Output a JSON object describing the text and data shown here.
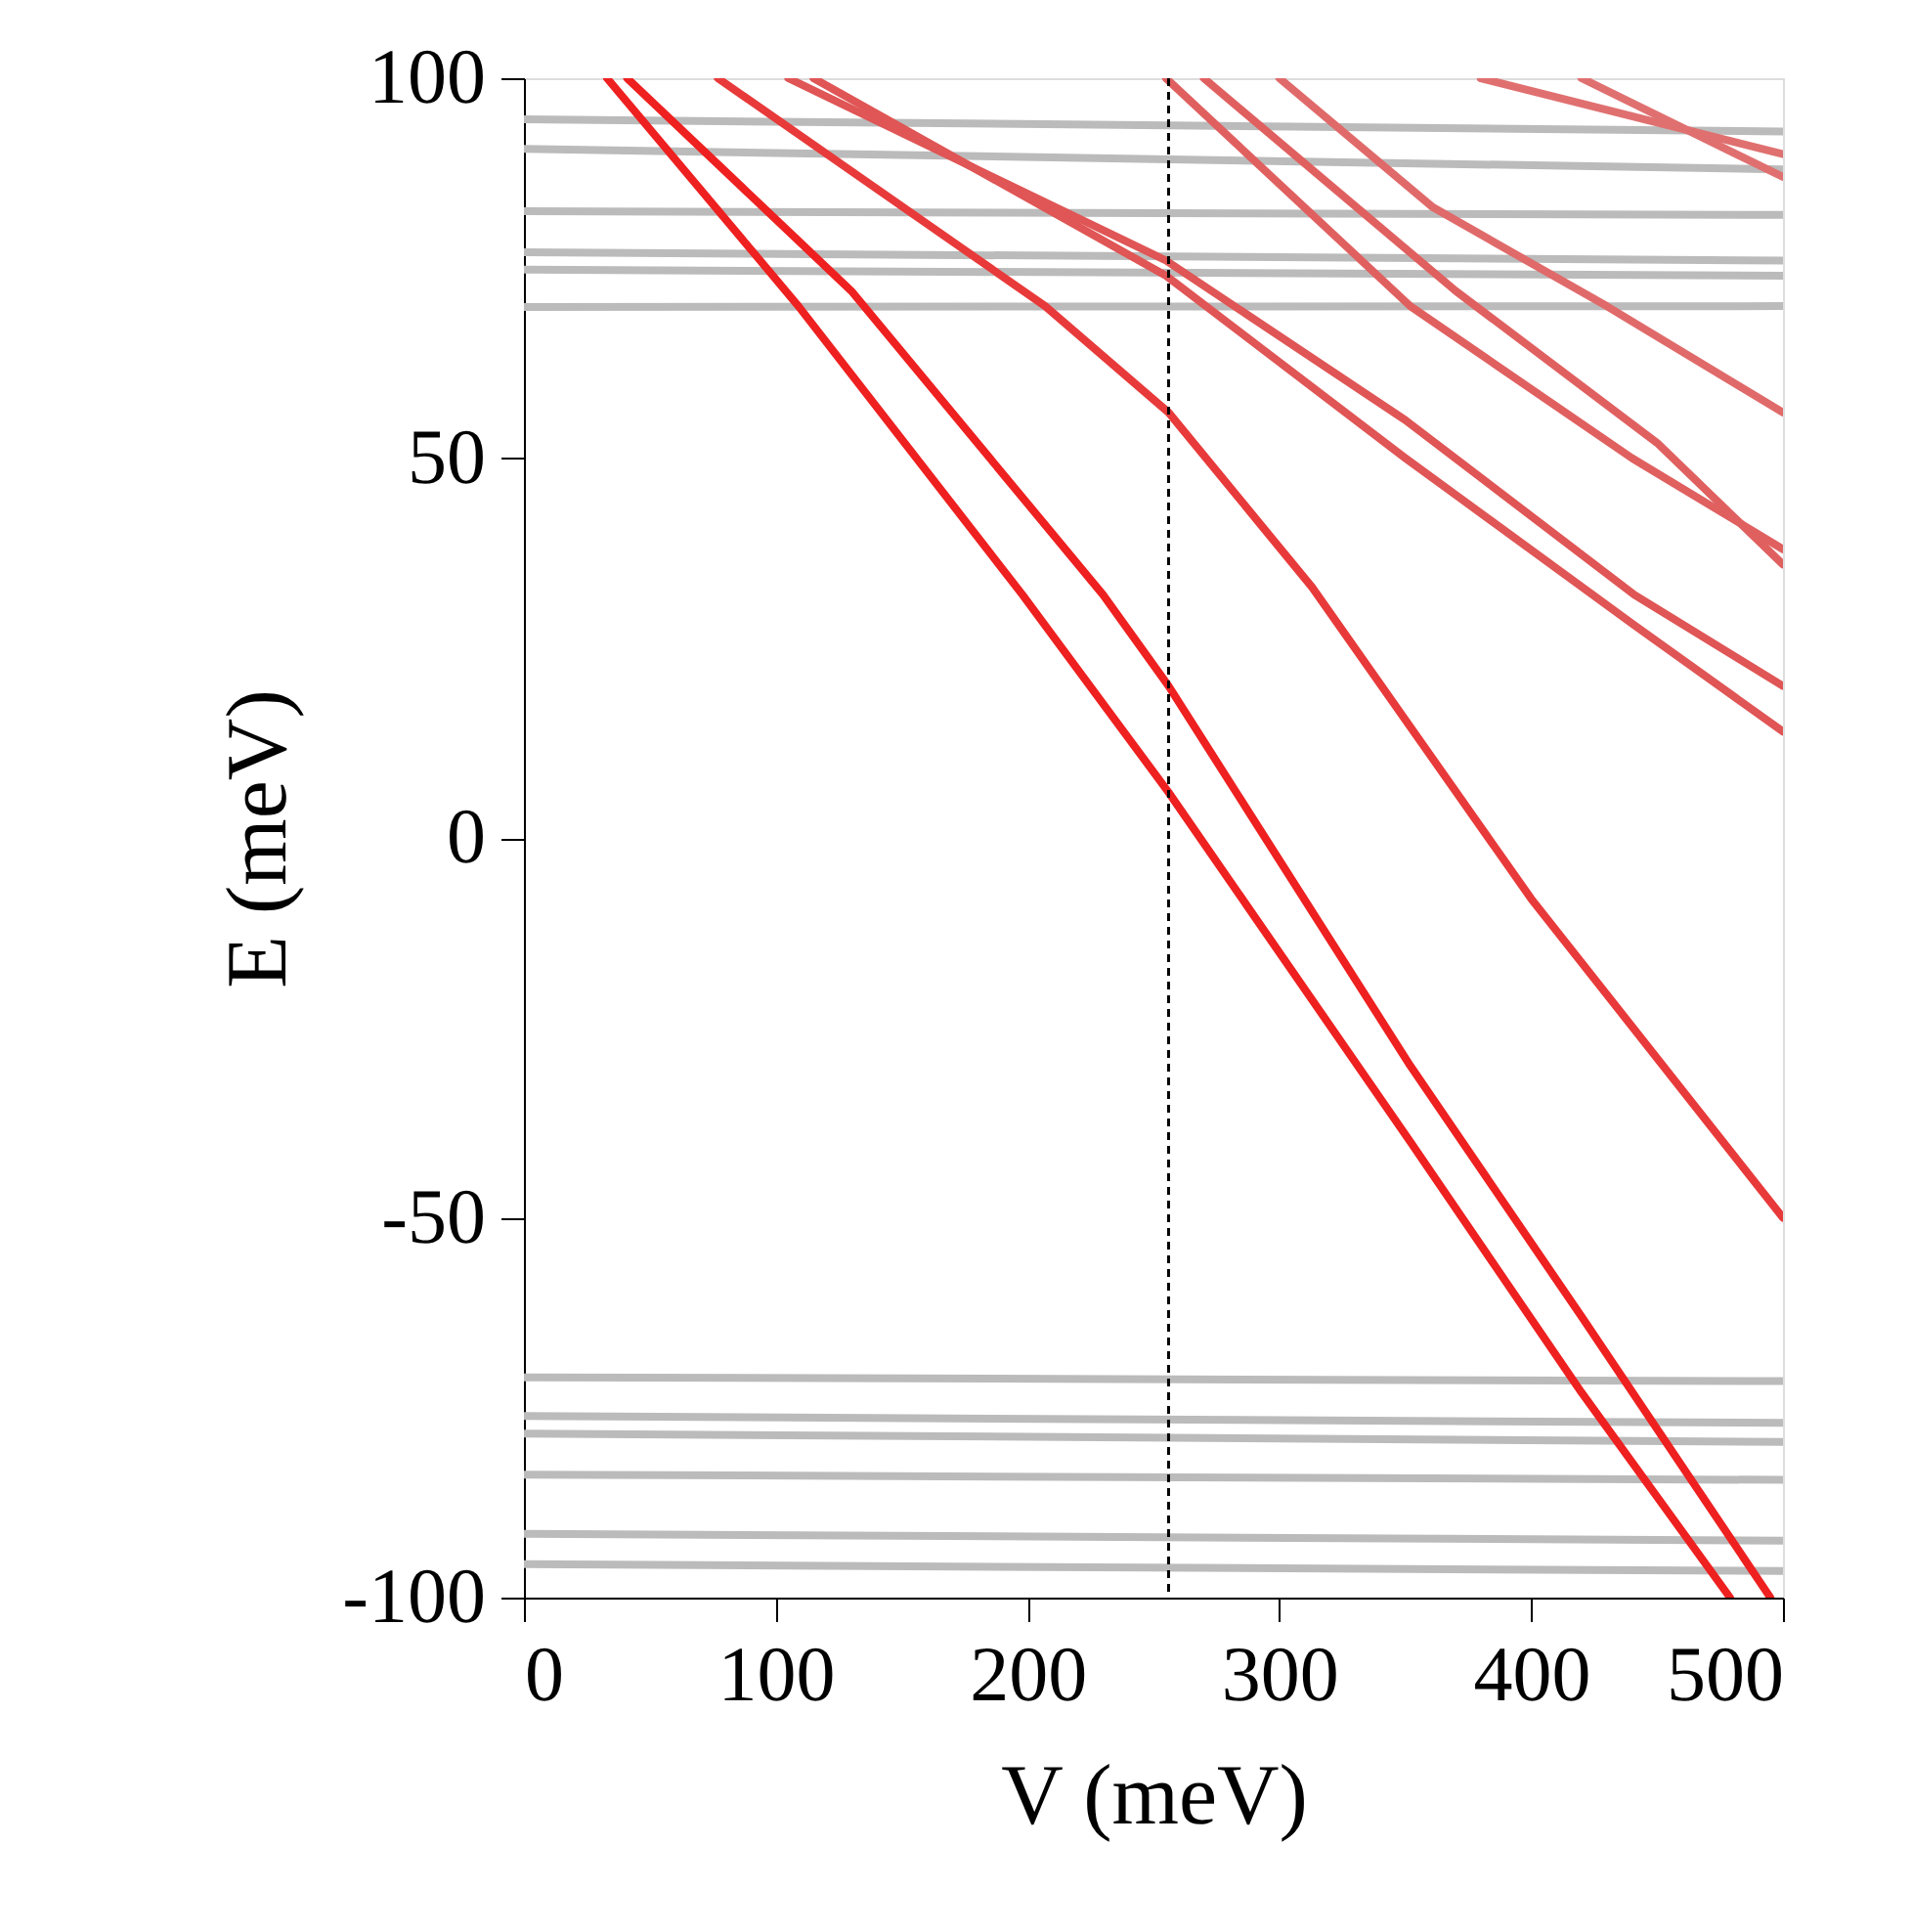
{
  "chart_data": {
    "type": "line",
    "xlabel": "V (meV)",
    "ylabel": "E (meV)",
    "xlim": [
      0,
      500
    ],
    "xticks": [
      0,
      100,
      200,
      300,
      400,
      500
    ],
    "ylim": [
      -100,
      100
    ],
    "yticks": [
      -100,
      -50,
      0,
      50,
      100
    ],
    "grid": false,
    "legend": false,
    "marker": "none",
    "line_style": "solid",
    "ref_lines": [
      {
        "axis": "x",
        "value": 256,
        "color": "#000000",
        "line_style": "dashed"
      }
    ],
    "series": [
      {
        "color": "#bbbbbb",
        "x": [
          0,
          500
        ],
        "values": [
          94.6,
          93
        ]
      },
      {
        "color": "#bbbbbb",
        "x": [
          0,
          500
        ],
        "values": [
          90.7,
          88
        ]
      },
      {
        "color": "#bbbbbb",
        "x": [
          0,
          500
        ],
        "values": [
          82.5,
          82
        ]
      },
      {
        "color": "#bbbbbb",
        "x": [
          0,
          500
        ],
        "values": [
          77.1,
          76
        ]
      },
      {
        "color": "#bbbbbb",
        "x": [
          0,
          500
        ],
        "values": [
          74.8,
          74
        ]
      },
      {
        "color": "#bbbbbb",
        "x": [
          0,
          500
        ],
        "values": [
          69.9,
          70
        ]
      },
      {
        "color": "#bbbbbb",
        "x": [
          0,
          500
        ],
        "values": [
          -71,
          -71.5
        ]
      },
      {
        "color": "#bbbbbb",
        "x": [
          0,
          500
        ],
        "values": [
          -76.1,
          -77
        ]
      },
      {
        "color": "#bbbbbb",
        "x": [
          0,
          500
        ],
        "values": [
          -78.4,
          -79.5
        ]
      },
      {
        "color": "#bbbbbb",
        "x": [
          0,
          500
        ],
        "values": [
          -83.8,
          -84.5
        ]
      },
      {
        "color": "#bbbbbb",
        "x": [
          0,
          500
        ],
        "values": [
          -91.6,
          -92.5
        ]
      },
      {
        "color": "#bbbbbb",
        "x": [
          0,
          500
        ],
        "values": [
          -95.6,
          -96.5
        ]
      },
      {
        "color": "#ee2020",
        "x": [
          33,
          109,
          198,
          256,
          352,
          420,
          479
        ],
        "values": [
          100,
          70,
          32,
          6,
          -40,
          -73,
          -100
        ]
      },
      {
        "color": "#ee2020",
        "x": [
          41,
          130,
          230,
          256,
          352,
          420,
          495
        ],
        "values": [
          100,
          72,
          32,
          20,
          -30,
          -63,
          -100
        ]
      },
      {
        "color": "#e83a3a",
        "x": [
          77,
          207,
          256,
          313,
          400,
          500
        ],
        "values": [
          100,
          70,
          56,
          33,
          -8,
          -50
        ]
      },
      {
        "color": "#e05555",
        "x": [
          105,
          255,
          350,
          441,
          500
        ],
        "values": [
          100,
          76,
          55,
          32,
          20
        ]
      },
      {
        "color": "#e05555",
        "x": [
          115,
          255,
          350,
          441,
          500
        ],
        "values": [
          100,
          74,
          50,
          28,
          14
        ]
      },
      {
        "color": "#e06060",
        "x": [
          255,
          352,
          440,
          500
        ],
        "values": [
          100,
          70,
          50,
          38
        ]
      },
      {
        "color": "#e06060",
        "x": [
          270,
          370,
          450,
          500
        ],
        "values": [
          100,
          72,
          52,
          36
        ]
      },
      {
        "color": "#e06a6a",
        "x": [
          300,
          361,
          430,
          500
        ],
        "values": [
          100,
          83,
          70,
          56
        ]
      },
      {
        "color": "#e07070",
        "x": [
          380,
          500
        ],
        "values": [
          100,
          90
        ]
      },
      {
        "color": "#e07070",
        "x": [
          420,
          500
        ],
        "values": [
          100,
          87
        ]
      }
    ]
  }
}
